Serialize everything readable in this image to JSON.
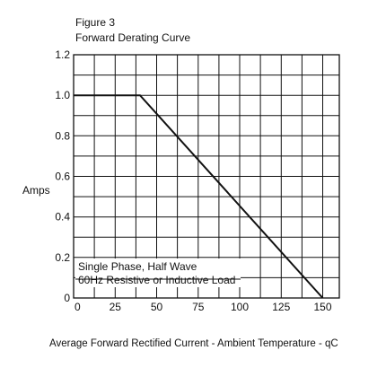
{
  "figure": {
    "number": "Figure 3",
    "title": "Forward Derating Curve"
  },
  "chart_data": {
    "type": "line",
    "title": "Forward Derating Curve",
    "xlabel": "Average Forward Rectified Current - Ambient Temperature  - qC",
    "ylabel": "Amps",
    "xlim": [
      0,
      160
    ],
    "ylim": [
      0,
      1.2
    ],
    "x_ticks": [
      "0",
      "25",
      "50",
      "75",
      "100",
      "125",
      "150"
    ],
    "x_tick_values": [
      0,
      25,
      50,
      75,
      100,
      125,
      150
    ],
    "y_ticks": [
      "0",
      "0.2",
      "0.4",
      "0.6",
      "0.8",
      "1.0",
      "1.2"
    ],
    "y_tick_values": [
      0,
      0.2,
      0.4,
      0.6,
      0.8,
      1.0,
      1.2
    ],
    "grid": true,
    "grid_x_step": 12.5,
    "grid_y_step": 0.1,
    "series": [
      {
        "x": [
          0,
          40,
          150
        ],
        "y": [
          1.0,
          1.0,
          0
        ]
      }
    ],
    "annotations": [
      "Single Phase, Half Wave",
      "60Hz Resistive or Inductive Load"
    ]
  }
}
